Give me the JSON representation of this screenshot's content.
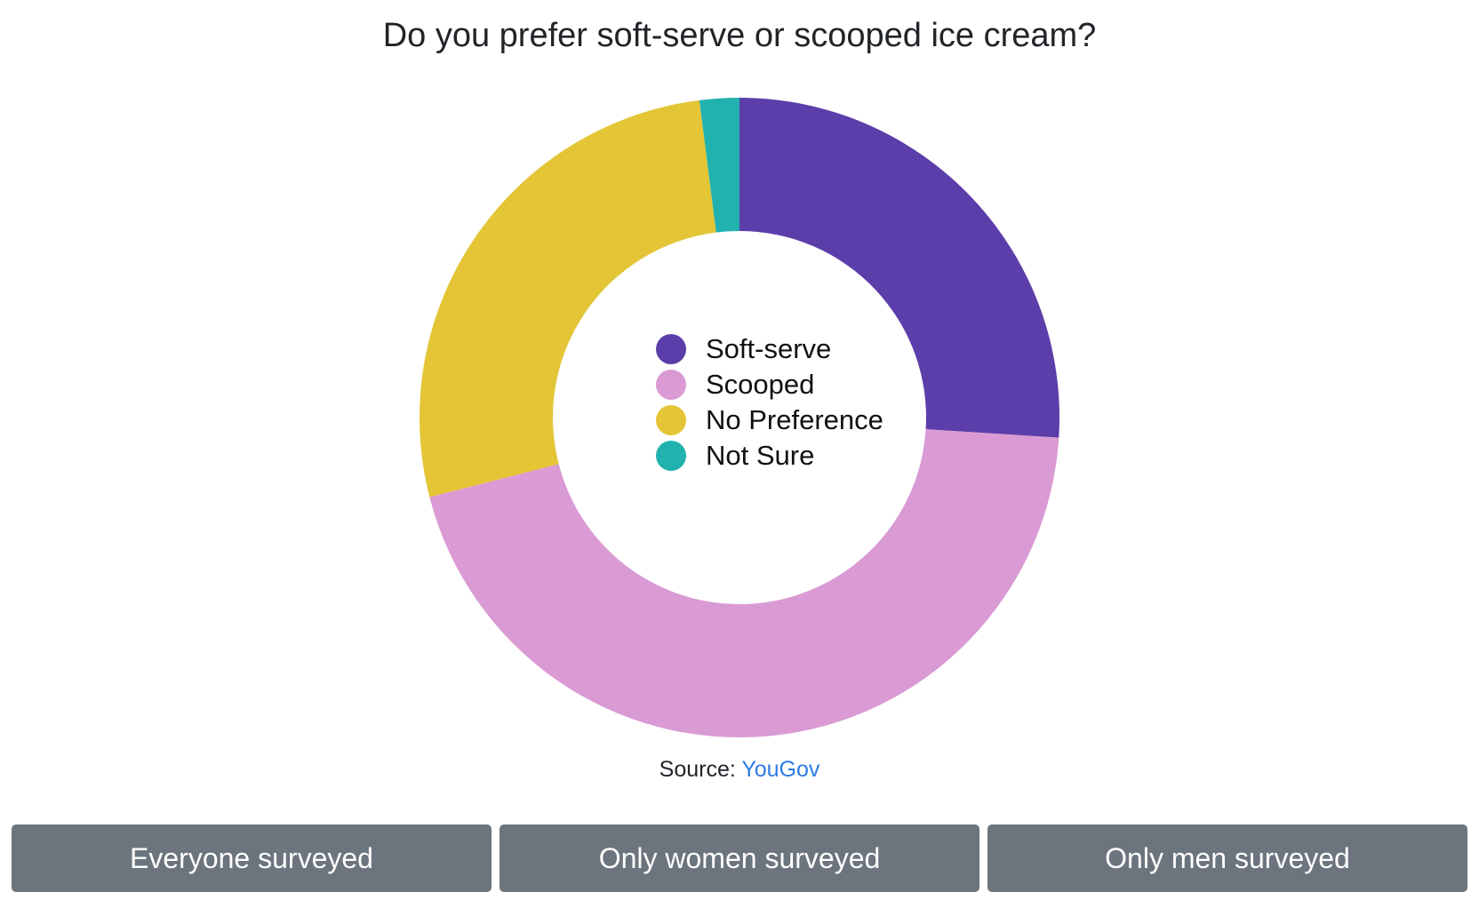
{
  "chart_data": {
    "type": "pie",
    "donut": true,
    "title": "Do you prefer soft-serve or scooped ice cream?",
    "categories": [
      "Soft-serve",
      "Scooped",
      "No Preference",
      "Not Sure"
    ],
    "values": [
      26,
      45,
      27,
      2
    ],
    "colors": [
      "#5b3ea9",
      "#da9ad4",
      "#e3c536",
      "#21b2b0"
    ],
    "legend_position": "center",
    "unit": "%"
  },
  "source": {
    "label": "Source:",
    "link_text": "YouGov"
  },
  "buttons": [
    {
      "label": "Everyone surveyed"
    },
    {
      "label": "Only women surveyed"
    },
    {
      "label": "Only men surveyed"
    }
  ]
}
